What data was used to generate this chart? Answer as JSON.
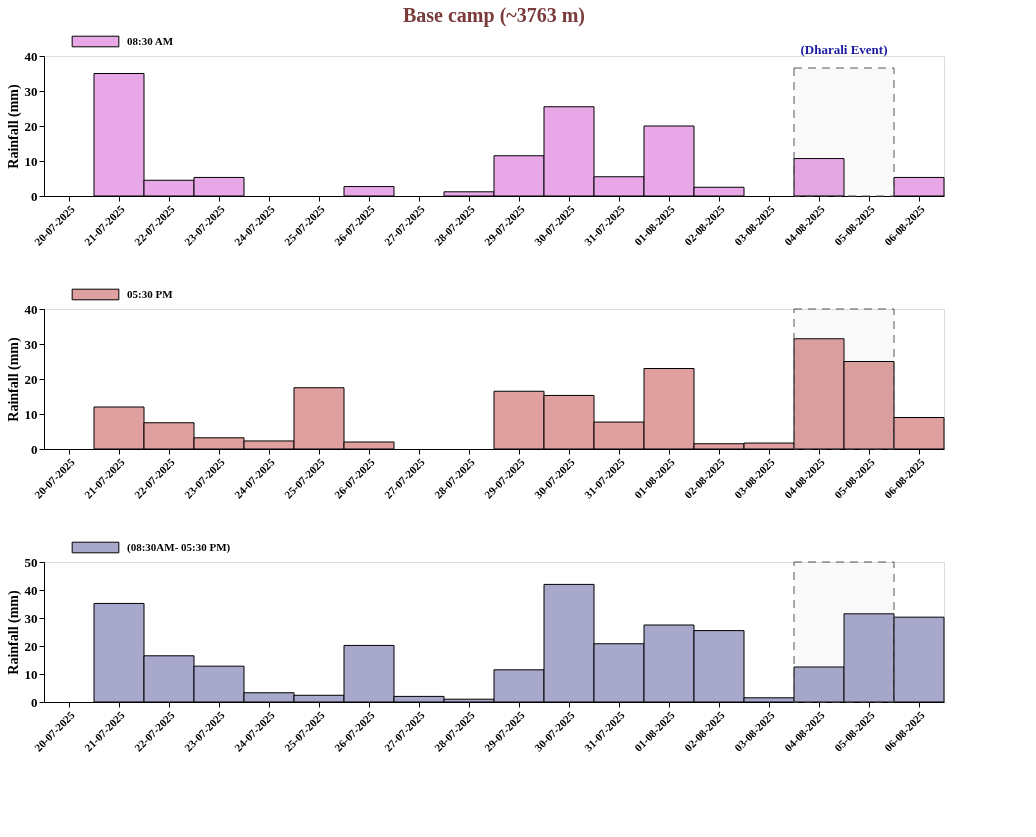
{
  "chart_data": [
    {
      "type": "bar",
      "title": "Base camp (~3763 m)",
      "ylabel": "Rainfall (mm)",
      "legend": "top left",
      "grid": false,
      "categories": [
        "20-07-2025",
        "21-07-2025",
        "22-07-2025",
        "23-07-2025",
        "24-07-2025",
        "25-07-2025",
        "26-07-2025",
        "27-07-2025",
        "28-07-2025",
        "29-07-2025",
        "30-07-2025",
        "31-07-2025",
        "01-08-2025",
        "02-08-2025",
        "03-08-2025",
        "04-08-2025",
        "05-08-2025",
        "06-08-2025"
      ],
      "series": [
        {
          "name": "08:30 AM",
          "color": "#e8a8e8",
          "values": [
            0,
            35,
            4.5,
            5.3,
            0,
            0,
            2.7,
            0,
            1.2,
            11.5,
            25.5,
            5.5,
            20,
            2.5,
            0,
            10.7,
            0,
            5.3
          ]
        }
      ],
      "ylim": [
        0,
        40
      ],
      "yticks": [
        0,
        10,
        20,
        30,
        40
      ],
      "bands": [
        {
          "axis": "x",
          "from": "04-08-2025",
          "to": "05-08-2025",
          "label": "(Dharali Event)"
        }
      ]
    },
    {
      "type": "bar",
      "ylabel": "Rainfall (mm)",
      "legend": "top left",
      "grid": false,
      "categories": [
        "20-07-2025",
        "21-07-2025",
        "22-07-2025",
        "23-07-2025",
        "24-07-2025",
        "25-07-2025",
        "26-07-2025",
        "27-07-2025",
        "28-07-2025",
        "29-07-2025",
        "30-07-2025",
        "31-07-2025",
        "01-08-2025",
        "02-08-2025",
        "03-08-2025",
        "04-08-2025",
        "05-08-2025",
        "06-08-2025"
      ],
      "series": [
        {
          "name": "05:30 PM",
          "color": "#e0a0a0",
          "values": [
            0,
            12,
            7.5,
            3.2,
            2.3,
            17.5,
            2,
            0,
            0,
            16.5,
            15.3,
            7.7,
            23,
            1.5,
            1.7,
            31.5,
            25,
            9
          ]
        }
      ],
      "ylim": [
        0,
        40
      ],
      "yticks": [
        0,
        10,
        20,
        30,
        40
      ],
      "bands": [
        {
          "axis": "x",
          "from": "04-08-2025",
          "to": "05-08-2025"
        }
      ]
    },
    {
      "type": "bar",
      "ylabel": "Rainfall (mm)",
      "legend": "top left",
      "grid": false,
      "categories": [
        "20-07-2025",
        "21-07-2025",
        "22-07-2025",
        "23-07-2025",
        "24-07-2025",
        "25-07-2025",
        "26-07-2025",
        "27-07-2025",
        "28-07-2025",
        "29-07-2025",
        "30-07-2025",
        "31-07-2025",
        "01-08-2025",
        "02-08-2025",
        "03-08-2025",
        "04-08-2025",
        "05-08-2025",
        "06-08-2025"
      ],
      "series": [
        {
          "name": "(08:30AM- 05:30 PM)",
          "color": "#a8a8cc",
          "values": [
            0,
            35.2,
            16.5,
            12.8,
            3.3,
            2.4,
            20.2,
            2,
            1,
            11.5,
            42,
            20.8,
            27.5,
            25.5,
            1.5,
            12.5,
            31.5,
            30.3
          ]
        }
      ],
      "ylim": [
        0,
        50
      ],
      "yticks": [
        0,
        10,
        20,
        30,
        40,
        50
      ],
      "bands": [
        {
          "axis": "x",
          "from": "04-08-2025",
          "to": "05-08-2025"
        }
      ]
    }
  ]
}
